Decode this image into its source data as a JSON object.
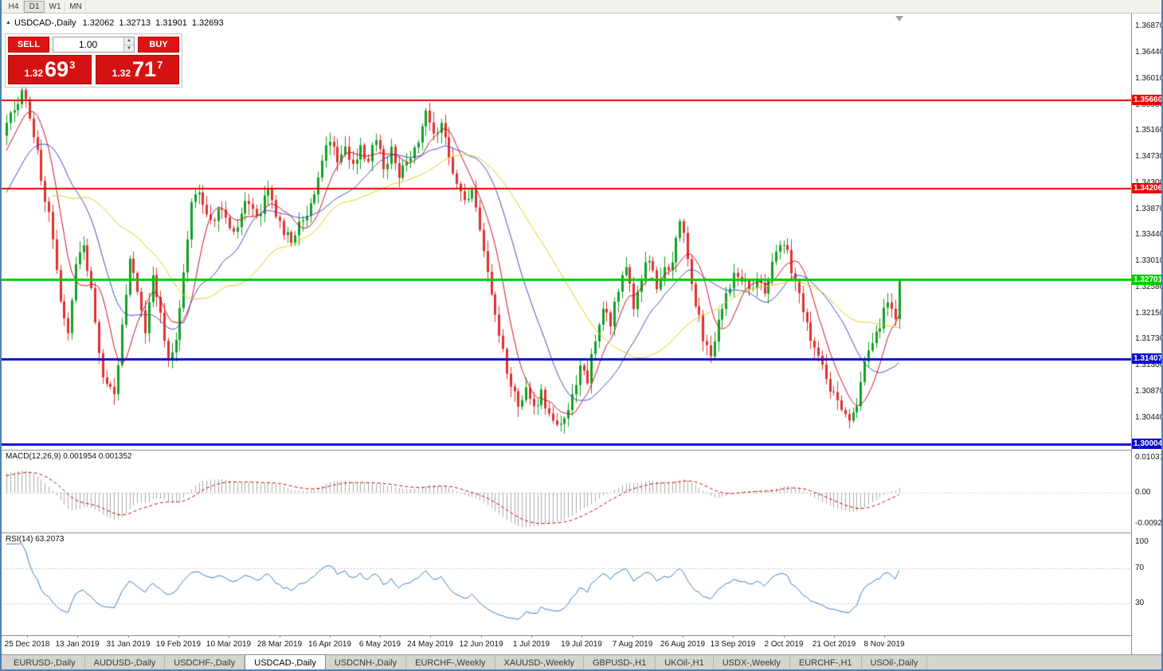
{
  "toolbar": {
    "periods": [
      {
        "label": "H4",
        "active": false
      },
      {
        "label": "D1",
        "active": true
      },
      {
        "label": "W1",
        "active": false
      },
      {
        "label": "MN",
        "active": false
      }
    ]
  },
  "chart_header": {
    "symbol_label": "USDCAD-,Daily",
    "open": "1.32062",
    "high": "1.32713",
    "low": "1.31901",
    "close": "1.32693"
  },
  "trade_panel": {
    "sell_label": "SELL",
    "buy_label": "BUY",
    "volume": "1.00",
    "sell_price": {
      "prefix": "1.32",
      "big": "69",
      "sup": "3"
    },
    "buy_price": {
      "prefix": "1.32",
      "big": "71",
      "sup": "7"
    }
  },
  "price_scale": {
    "ticks": [
      "1.36870",
      "1.36440",
      "1.36010",
      "1.35580",
      "1.35160",
      "1.34730",
      "1.34300",
      "1.33870",
      "1.33440",
      "1.33010",
      "1.32580",
      "1.32150",
      "1.31730",
      "1.31300",
      "1.30870",
      "1.30440"
    ]
  },
  "macd_panel": {
    "label": "MACD(12,26,9) 0.001954 0.001352",
    "scale": [
      "0.01031",
      "0.00",
      "-0.00920"
    ]
  },
  "rsi_panel": {
    "label": "RSI(14) 63.2073",
    "scale": [
      "100",
      "70",
      "30"
    ]
  },
  "date_axis": [
    "25 Dec 2018",
    "13 Jan 2019",
    "31 Jan 2019",
    "19 Feb 2019",
    "10 Mar 2019",
    "28 Mar 2019",
    "16 Apr 2019",
    "6 May 2019",
    "24 May 2019",
    "12 Jun 2019",
    "1 Jul 2019",
    "19 Jul 2019",
    "7 Aug 2019",
    "26 Aug 2019",
    "13 Sep 2019",
    "2 Oct 2019",
    "21 Oct 2019",
    "8 Nov 2019"
  ],
  "tabs": [
    {
      "label": "EURUSD-,Daily",
      "active": false
    },
    {
      "label": "AUDUSD-,Daily",
      "active": false
    },
    {
      "label": "USDCHF-,Daily",
      "active": false
    },
    {
      "label": "USDCAD-,Daily",
      "active": true
    },
    {
      "label": "USDCNH-,Daily",
      "active": false
    },
    {
      "label": "EURCHF-,Weekly",
      "active": false
    },
    {
      "label": "XAUUSD-,Weekly",
      "active": false
    },
    {
      "label": "GBPUSD-,H1",
      "active": false
    },
    {
      "label": "UKOil-,H1",
      "active": false
    },
    {
      "label": "USDX-,Weekly",
      "active": false
    },
    {
      "label": "EURCHF-,H1",
      "active": false
    },
    {
      "label": "USOil-,Daily",
      "active": false
    }
  ],
  "chart_data": {
    "type": "candlestick",
    "symbol": "USDCAD-",
    "timeframe": "Daily",
    "price_axis": {
      "top": 1.3687,
      "bottom": 1.3044,
      "tick_step": 0.0043
    },
    "last_candle": {
      "open": 1.32062,
      "high": 1.32713,
      "low": 1.31901,
      "close": 1.32693
    },
    "levels": [
      {
        "price": 1.3566,
        "color": "#ee0000",
        "width": 2
      },
      {
        "price": 1.34206,
        "color": "#ee0000",
        "width": 2
      },
      {
        "price": 1.32701,
        "color": "#00cc00",
        "width": 3
      },
      {
        "price": 1.31407,
        "color": "#0a0ad0",
        "width": 3
      },
      {
        "price": 1.30004,
        "color": "#0a0ad0",
        "width": 3
      }
    ],
    "moving_averages": [
      {
        "period": 8,
        "color": "#cc1122"
      },
      {
        "period": 20,
        "color": "#3b4cc8"
      },
      {
        "period": 40,
        "color": "#e3cc14"
      }
    ],
    "indicators": {
      "macd": {
        "params": "12,26,9",
        "value": 0.001954,
        "signal": 0.001352,
        "scale_max": 0.01031,
        "scale_min": -0.0092
      },
      "rsi": {
        "period": 14,
        "value": 63.2073,
        "levels": [
          70,
          30
        ]
      }
    },
    "candle_colors": {
      "up": "#11a022",
      "down": "#e03030"
    },
    "visible_bars": 233,
    "price_path_anchors": [
      [
        -27,
        1.324
      ],
      [
        -20,
        1.33
      ],
      [
        -13,
        1.337
      ],
      [
        -6,
        1.345
      ],
      [
        -2,
        1.3505
      ],
      [
        0,
        1.3525
      ],
      [
        2,
        1.3555
      ],
      [
        4,
        1.3578
      ],
      [
        6,
        1.3545
      ],
      [
        9,
        1.344
      ],
      [
        12,
        1.334
      ],
      [
        14,
        1.3245
      ],
      [
        16,
        1.3185
      ],
      [
        18,
        1.329
      ],
      [
        20,
        1.333
      ],
      [
        22,
        1.325
      ],
      [
        24,
        1.315
      ],
      [
        26,
        1.309
      ],
      [
        28,
        1.308
      ],
      [
        30,
        1.32
      ],
      [
        32,
        1.331
      ],
      [
        34,
        1.325
      ],
      [
        36,
        1.319
      ],
      [
        38,
        1.327
      ],
      [
        40,
        1.321
      ],
      [
        42,
        1.314
      ],
      [
        44,
        1.3165
      ],
      [
        46,
        1.329
      ],
      [
        48,
        1.34
      ],
      [
        50,
        1.342
      ],
      [
        53,
        1.336
      ],
      [
        56,
        1.339
      ],
      [
        59,
        1.334
      ],
      [
        62,
        1.34
      ],
      [
        65,
        1.337
      ],
      [
        68,
        1.342
      ],
      [
        71,
        1.336
      ],
      [
        74,
        1.3335
      ],
      [
        77,
        1.337
      ],
      [
        80,
        1.341
      ],
      [
        82,
        1.3475
      ],
      [
        84,
        1.3505
      ],
      [
        86,
        1.347
      ],
      [
        88,
        1.3495
      ],
      [
        90,
        1.346
      ],
      [
        92,
        1.3485
      ],
      [
        94,
        1.347
      ],
      [
        96,
        1.3505
      ],
      [
        98,
        1.3455
      ],
      [
        100,
        1.348
      ],
      [
        102,
        1.3445
      ],
      [
        104,
        1.3465
      ],
      [
        107,
        1.3505
      ],
      [
        109,
        1.3558
      ],
      [
        111,
        1.3505
      ],
      [
        113,
        1.3525
      ],
      [
        115,
        1.348
      ],
      [
        117,
        1.3425
      ],
      [
        119,
        1.3395
      ],
      [
        121,
        1.342
      ],
      [
        123,
        1.3345
      ],
      [
        125,
        1.328
      ],
      [
        127,
        1.322
      ],
      [
        129,
        1.315
      ],
      [
        131,
        1.3095
      ],
      [
        133,
        1.307
      ],
      [
        135,
        1.3085
      ],
      [
        137,
        1.3055
      ],
      [
        139,
        1.309
      ],
      [
        141,
        1.3045
      ],
      [
        143,
        1.303
      ],
      [
        145,
        1.3045
      ],
      [
        147,
        1.308
      ],
      [
        149,
        1.313
      ],
      [
        151,
        1.311
      ],
      [
        153,
        1.317
      ],
      [
        155,
        1.322
      ],
      [
        157,
        1.32
      ],
      [
        159,
        1.326
      ],
      [
        161,
        1.329
      ],
      [
        163,
        1.323
      ],
      [
        165,
        1.327
      ],
      [
        167,
        1.331
      ],
      [
        169,
        1.326
      ],
      [
        171,
        1.329
      ],
      [
        173,
        1.3295
      ],
      [
        175,
        1.3375
      ],
      [
        177,
        1.331
      ],
      [
        179,
        1.323
      ],
      [
        181,
        1.318
      ],
      [
        183,
        1.3145
      ],
      [
        185,
        1.32
      ],
      [
        187,
        1.324
      ],
      [
        189,
        1.329
      ],
      [
        191,
        1.327
      ],
      [
        193,
        1.325
      ],
      [
        195,
        1.328
      ],
      [
        197,
        1.324
      ],
      [
        199,
        1.33
      ],
      [
        201,
        1.333
      ],
      [
        203,
        1.331
      ],
      [
        205,
        1.326
      ],
      [
        207,
        1.322
      ],
      [
        209,
        1.318
      ],
      [
        211,
        1.315
      ],
      [
        213,
        1.311
      ],
      [
        215,
        1.308
      ],
      [
        217,
        1.306
      ],
      [
        219,
        1.3042
      ],
      [
        221,
        1.307
      ],
      [
        223,
        1.313
      ],
      [
        225,
        1.316
      ],
      [
        227,
        1.32
      ],
      [
        229,
        1.3235
      ],
      [
        231,
        1.32062
      ],
      [
        232,
        1.32693
      ]
    ]
  }
}
